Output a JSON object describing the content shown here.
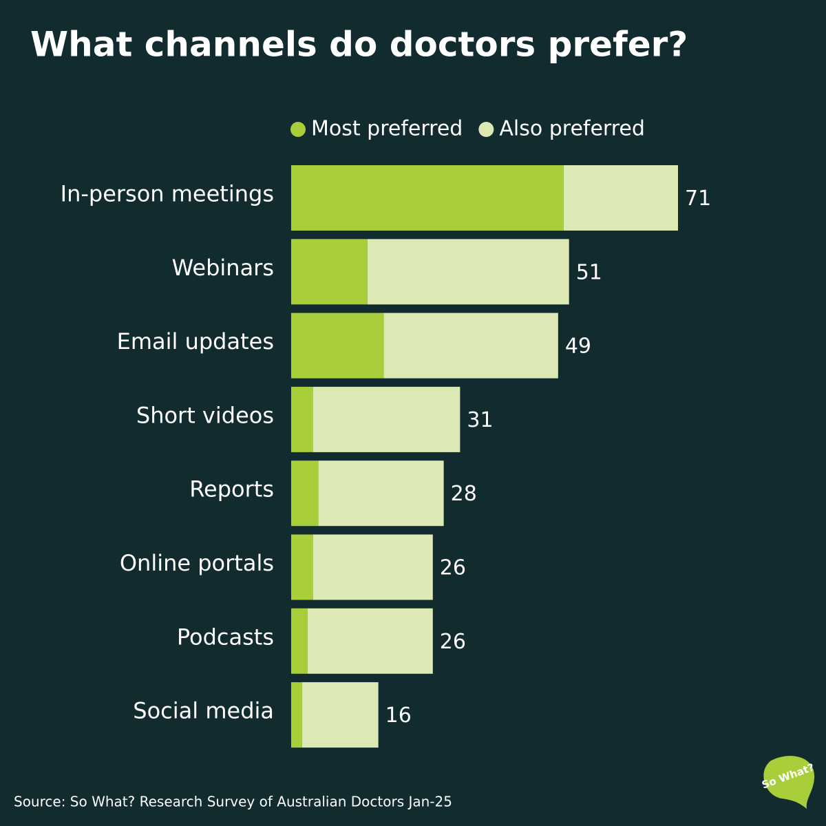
{
  "chart_data": {
    "type": "stacked-bar",
    "orientation": "horizontal",
    "title": "What channels do doctors prefer?",
    "categories": [
      "In-person meetings",
      "Webinars",
      "Email updates",
      "Short videos",
      "Reports",
      "Online portals",
      "Podcasts",
      "Social media"
    ],
    "series": [
      {
        "name": "Most preferred",
        "color": "#a8cf3a",
        "values": [
          50,
          14,
          17,
          4,
          5,
          4,
          3,
          2
        ]
      },
      {
        "name": "Also preferred",
        "color": "#dce9b5",
        "values": [
          21,
          37,
          32,
          27,
          23,
          22,
          23,
          14
        ]
      }
    ],
    "totals": [
      71,
      51,
      49,
      31,
      28,
      26,
      26,
      16
    ],
    "source": "Source: So What? Research Survey of Australian Doctors Jan-25",
    "logo": "So What?"
  }
}
